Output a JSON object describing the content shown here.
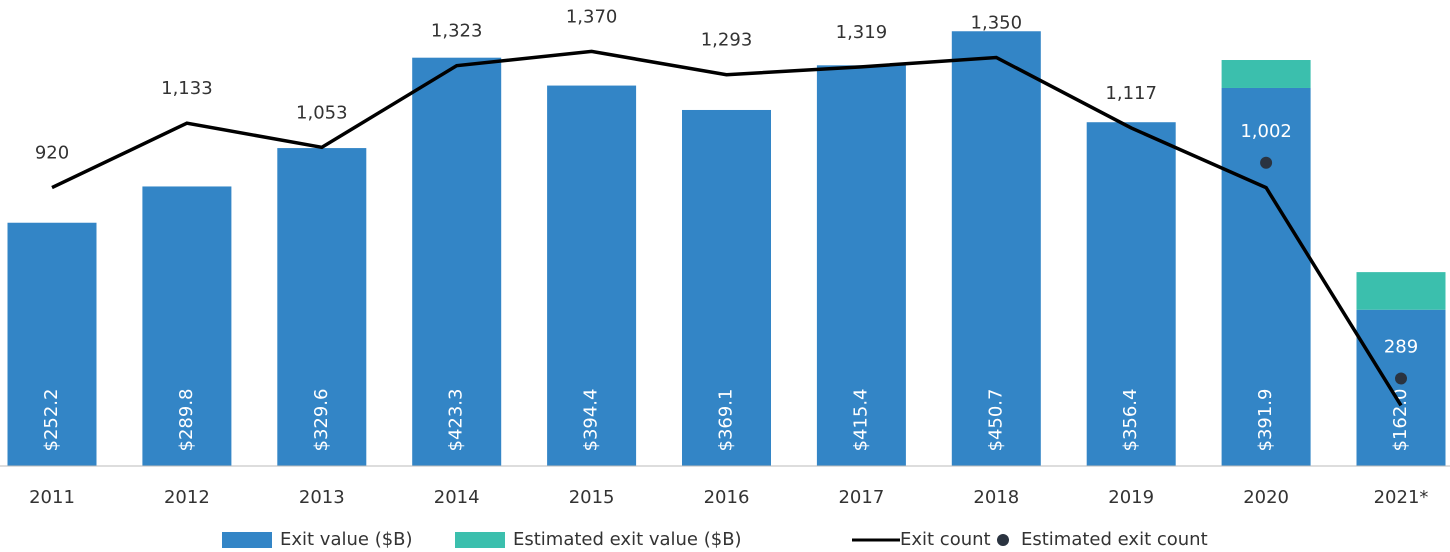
{
  "chart_data": {
    "type": "bar",
    "categories": [
      "2011",
      "2012",
      "2013",
      "2014",
      "2015",
      "2016",
      "2017",
      "2018",
      "2019",
      "2020",
      "2021*"
    ],
    "ylim": [
      0,
      480
    ],
    "y2lim": [
      0,
      1530
    ],
    "stacked": true,
    "series": [
      {
        "name": "Exit value ($B)",
        "type": "bar",
        "color": "#3385c6",
        "values": [
          252.2,
          289.8,
          329.6,
          423.3,
          394.4,
          369.1,
          415.4,
          450.7,
          356.4,
          391.9,
          162.0
        ],
        "value_labels": [
          "$252.2",
          "$289.8",
          "$329.6",
          "$423.3",
          "$394.4",
          "$369.1",
          "$415.4",
          "$450.7",
          "$356.4",
          "$391.9",
          "$162.0"
        ]
      },
      {
        "name": "Estimated exit value ($B)",
        "type": "bar",
        "color": "#3bbfad",
        "values": [
          null,
          null,
          null,
          null,
          null,
          null,
          null,
          null,
          null,
          29,
          39
        ]
      },
      {
        "name": "Exit count",
        "type": "line",
        "axis": "y2",
        "color": "#000000",
        "values": [
          920,
          1133,
          1053,
          1323,
          1370,
          1293,
          1319,
          1350,
          1117,
          920,
          200
        ],
        "value_labels": [
          "920",
          "1,133",
          "1,053",
          "1,323",
          "1,370",
          "1,293",
          "1,319",
          "1,350",
          "1,117",
          null,
          null
        ]
      },
      {
        "name": "Estimated exit count",
        "type": "scatter",
        "axis": "y2",
        "color": "#2a3340",
        "values": [
          null,
          null,
          null,
          null,
          null,
          null,
          null,
          null,
          null,
          1002,
          289
        ],
        "value_labels": [
          null,
          null,
          null,
          null,
          null,
          null,
          null,
          null,
          null,
          "1,002",
          "289"
        ]
      }
    ]
  }
}
